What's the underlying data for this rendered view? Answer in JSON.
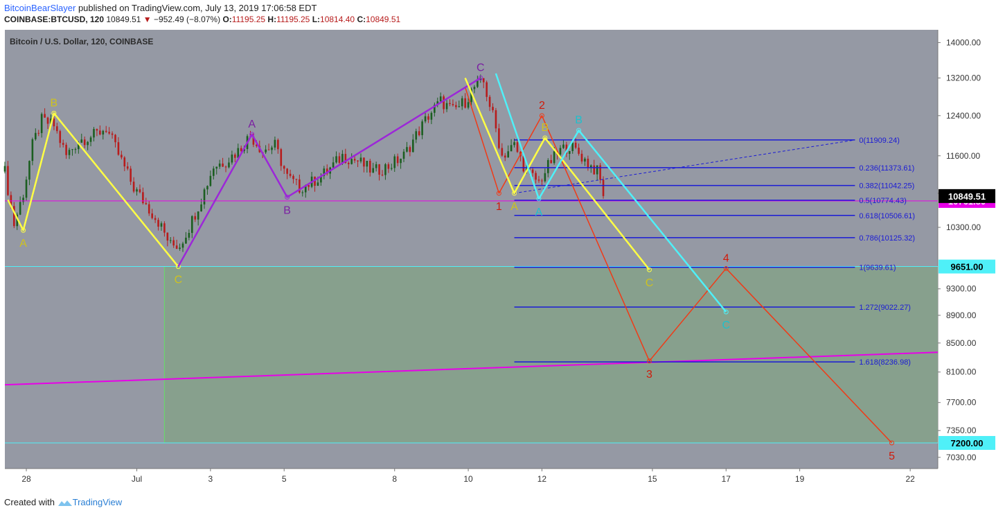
{
  "header": {
    "author": "BitcoinBearSlayer",
    "published": "published on TradingView.com, July 13, 2019 17:06:58 EDT",
    "symbol": "COINBASE:BTCUSD, 120",
    "last": "10849.51",
    "change": "−952.49 (−8.07%)",
    "o_label": "O:",
    "o_value": "11195.25",
    "h_label": "H:",
    "h_value": "11195.25",
    "l_label": "L:",
    "l_value": "10814.40",
    "c_label": "C:",
    "c_value": "10849.51"
  },
  "footer": {
    "created": "Created with",
    "brand": "TradingView"
  },
  "colors": {
    "plot_bg": "#9599a4",
    "target_zone": "#87a08d",
    "yellow": "#ffff44",
    "purple": "#9c27d8",
    "red": "#f03a17",
    "cyan": "#4ff0f8",
    "magenta": "#e800e8",
    "fib": "#1a1ad6",
    "candle_up": "#1b5e20",
    "candle_down": "#b71c1c"
  },
  "chart_data": {
    "type": "candlestick",
    "title": "Bitcoin / U.S. Dollar, 120, COINBASE",
    "y_axis": {
      "scale": "log",
      "range": [
        6900,
        14300
      ],
      "ticks": [
        "14000.00",
        "13200.00",
        "12400.00",
        "11600.00",
        "10900.00",
        "10300.00",
        "9300.00",
        "8900.00",
        "8500.00",
        "8100.00",
        "7700.00",
        "7350.00",
        "7030.00"
      ]
    },
    "x_axis": {
      "range": [
        "2019-06-27T10:00",
        "2019-07-22T18:00"
      ],
      "ticks": [
        {
          "t": "2019-06-28",
          "label": "28"
        },
        {
          "t": "2019-07-01",
          "label": "Jul"
        },
        {
          "t": "2019-07-03",
          "label": "3"
        },
        {
          "t": "2019-07-05",
          "label": "5"
        },
        {
          "t": "2019-07-08",
          "label": "8"
        },
        {
          "t": "2019-07-10",
          "label": "10"
        },
        {
          "t": "2019-07-12",
          "label": "12"
        },
        {
          "t": "2019-07-15",
          "label": "15"
        },
        {
          "t": "2019-07-17",
          "label": "17"
        },
        {
          "t": "2019-07-19",
          "label": "19"
        },
        {
          "t": "2019-07-22",
          "label": "22"
        }
      ]
    },
    "price_path": [
      [
        "2019-06-27T10:00",
        11300
      ],
      [
        "2019-06-27T16:00",
        10350
      ],
      [
        "2019-06-27T22:00",
        10900
      ],
      [
        "2019-06-28T04:00",
        11800
      ],
      [
        "2019-06-28T10:00",
        12300
      ],
      [
        "2019-06-28T18:00",
        12200
      ],
      [
        "2019-06-29T02:00",
        11600
      ],
      [
        "2019-06-29T10:00",
        11900
      ],
      [
        "2019-06-29T20:00",
        12000
      ],
      [
        "2019-06-30T04:00",
        12150
      ],
      [
        "2019-06-30T14:00",
        11500
      ],
      [
        "2019-06-30T22:00",
        11000
      ],
      [
        "2019-07-01T06:00",
        10700
      ],
      [
        "2019-07-01T14:00",
        10400
      ],
      [
        "2019-07-01T22:00",
        10000
      ],
      [
        "2019-07-02T04:00",
        10000
      ],
      [
        "2019-07-02T10:00",
        10300
      ],
      [
        "2019-07-02T18:00",
        10800
      ],
      [
        "2019-07-03T02:00",
        11400
      ],
      [
        "2019-07-03T10:00",
        11500
      ],
      [
        "2019-07-03T18:00",
        11700
      ],
      [
        "2019-07-04T02:00",
        12000
      ],
      [
        "2019-07-04T10:00",
        11700
      ],
      [
        "2019-07-04T18:00",
        11800
      ],
      [
        "2019-07-05T02:00",
        11200
      ],
      [
        "2019-07-05T10:00",
        11000
      ],
      [
        "2019-07-05T18:00",
        11100
      ],
      [
        "2019-07-06T04:00",
        11300
      ],
      [
        "2019-07-06T14:00",
        11600
      ],
      [
        "2019-07-07T00:00",
        11500
      ],
      [
        "2019-07-07T10:00",
        11300
      ],
      [
        "2019-07-07T20:00",
        11400
      ],
      [
        "2019-07-08T06:00",
        11600
      ],
      [
        "2019-07-08T14:00",
        12000
      ],
      [
        "2019-07-08T22:00",
        12400
      ],
      [
        "2019-07-09T06:00",
        12700
      ],
      [
        "2019-07-09T14:00",
        12500
      ],
      [
        "2019-07-09T22:00",
        12700
      ],
      [
        "2019-07-10T04:00",
        13000
      ],
      [
        "2019-07-10T10:00",
        13100
      ],
      [
        "2019-07-10T16:00",
        12400
      ],
      [
        "2019-07-10T22:00",
        11600
      ],
      [
        "2019-07-11T06:00",
        11800
      ],
      [
        "2019-07-11T14:00",
        11300
      ],
      [
        "2019-07-11T22:00",
        11100
      ],
      [
        "2019-07-12T06:00",
        11500
      ],
      [
        "2019-07-12T12:00",
        11700
      ],
      [
        "2019-07-12T18:00",
        11800
      ],
      [
        "2019-07-13T00:00",
        11650
      ],
      [
        "2019-07-13T06:00",
        11450
      ],
      [
        "2019-07-13T12:00",
        11300
      ],
      [
        "2019-07-13T17:00",
        10849.51
      ]
    ],
    "horizontal_lines": [
      {
        "price": 10761.8,
        "label": "10761.80",
        "color": "#e800e8",
        "label_bg": "#e800e8",
        "label_color": "#ffffff"
      },
      {
        "price": 9651.0,
        "label": "9651.00",
        "color": "#4ff0f8",
        "label_bg": "#4ff0f8",
        "label_color": "#000000"
      },
      {
        "price": 7200.0,
        "label": "7200.00",
        "color": "#4ff0f8",
        "label_bg": "#4ff0f8",
        "label_color": "#000000"
      }
    ],
    "current_price": {
      "price": 10849.51,
      "label": "10849.51"
    },
    "target_zone": {
      "from": "2019-07-01T18:00",
      "to": "2019-07-22T18:00",
      "top": 9651,
      "bottom": 7200
    },
    "fib_levels": [
      {
        "label": "0(11909.24)",
        "price": 11909.24
      },
      {
        "label": "0.236(11373.61)",
        "price": 11373.61
      },
      {
        "label": "0.382(11042.25)",
        "price": 11042.25
      },
      {
        "label": "0.5(10774.43)",
        "price": 10774.43
      },
      {
        "label": "0.618(10506.61)",
        "price": 10506.61
      },
      {
        "label": "0.786(10125.32)",
        "price": 10125.32
      },
      {
        "label": "1(9639.61)",
        "price": 9639.61
      },
      {
        "label": "1.272(9022.27)",
        "price": 9022.27
      },
      {
        "label": "1.618(8236.98)",
        "price": 8236.98
      }
    ],
    "fib_range": {
      "from": "2019-07-11T06:00",
      "to": "2019-07-20T12:00"
    },
    "fib_trend": [
      [
        "2019-07-11T06:00",
        10900
      ],
      [
        "2019-07-20T12:00",
        11909.24
      ]
    ],
    "trend_line": [
      [
        "2019-06-27T10:00",
        7930
      ],
      [
        "2019-07-22T18:00",
        8370
      ]
    ],
    "wave_yellow_1": [
      [
        "2019-06-27T12:00",
        10780
      ],
      [
        "2019-06-27T22:00",
        10250
      ],
      [
        "2019-06-28T18:00",
        12450
      ],
      [
        "2019-07-02T03:00",
        9650
      ]
    ],
    "labels_yellow_1": [
      {
        "t": "2019-06-27T22:00",
        "price": 10250,
        "text": "A",
        "pos": "below"
      },
      {
        "t": "2019-06-28T18:00",
        "price": 12450,
        "text": "B",
        "pos": "above"
      },
      {
        "t": "2019-07-02T03:00",
        "price": 9650,
        "text": "C",
        "pos": "below"
      }
    ],
    "wave_purple": [
      [
        "2019-07-02T03:00",
        9650
      ],
      [
        "2019-07-04T03:00",
        12020
      ],
      [
        "2019-07-05T02:00",
        10830
      ],
      [
        "2019-07-10T08:00",
        13200
      ]
    ],
    "labels_purple": [
      {
        "t": "2019-07-04T03:00",
        "price": 12020,
        "text": "A",
        "pos": "above"
      },
      {
        "t": "2019-07-05T02:00",
        "price": 10830,
        "text": "B",
        "pos": "below"
      },
      {
        "t": "2019-07-10T08:00",
        "price": 13200,
        "text": "C",
        "pos": "above"
      }
    ],
    "wave_yellow_2": [
      [
        "2019-07-09T22:00",
        13200
      ],
      [
        "2019-07-11T06:00",
        10900
      ],
      [
        "2019-07-12T02:00",
        11950
      ],
      [
        "2019-07-14T22:00",
        9600
      ]
    ],
    "labels_yellow_2": [
      {
        "t": "2019-07-11T06:00",
        "price": 10900,
        "text": "A",
        "pos": "below"
      },
      {
        "t": "2019-07-12T02:00",
        "price": 11950,
        "text": "B",
        "pos": "above"
      },
      {
        "t": "2019-07-14T22:00",
        "price": 9600,
        "text": "C",
        "pos": "below"
      }
    ],
    "wave_cyan": [
      [
        "2019-07-10T18:00",
        13300
      ],
      [
        "2019-07-11T22:00",
        10800
      ],
      [
        "2019-07-13T00:00",
        12100
      ],
      [
        "2019-07-17T00:00",
        8950
      ]
    ],
    "labels_cyan": [
      {
        "t": "2019-07-11T22:00",
        "price": 10800,
        "text": "A",
        "pos": "below"
      },
      {
        "t": "2019-07-13T00:00",
        "price": 12100,
        "text": "B",
        "pos": "above"
      },
      {
        "t": "2019-07-17T00:00",
        "price": 8950,
        "text": "C",
        "pos": "below"
      }
    ],
    "wave_red": [
      [
        "2019-07-09T22:00",
        13000
      ],
      [
        "2019-07-10T20:00",
        10900
      ],
      [
        "2019-07-12T00:00",
        12400
      ],
      [
        "2019-07-14T22:00",
        8250
      ],
      [
        "2019-07-17T00:00",
        9620
      ],
      [
        "2019-07-21T12:00",
        7200
      ]
    ],
    "labels_red": [
      {
        "t": "2019-07-10T20:00",
        "price": 10900,
        "text": "1",
        "pos": "below"
      },
      {
        "t": "2019-07-12T00:00",
        "price": 12400,
        "text": "2",
        "pos": "above"
      },
      {
        "t": "2019-07-14T22:00",
        "price": 8250,
        "text": "3",
        "pos": "below"
      },
      {
        "t": "2019-07-17T00:00",
        "price": 9620,
        "text": "4",
        "pos": "above"
      },
      {
        "t": "2019-07-21T12:00",
        "price": 7200,
        "text": "5",
        "pos": "below"
      }
    ]
  }
}
